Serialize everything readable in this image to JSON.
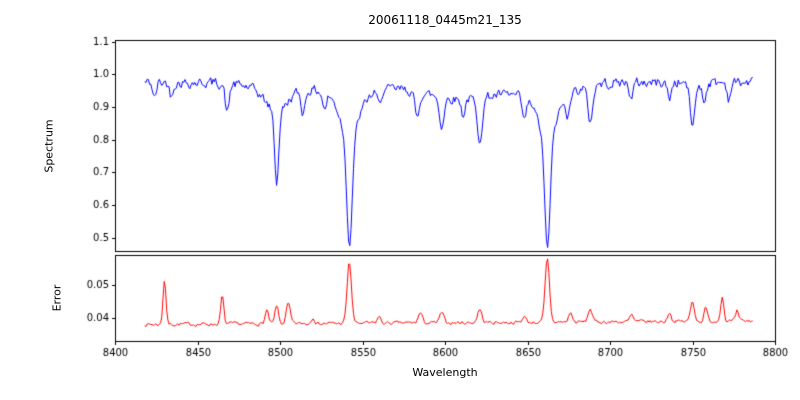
{
  "chart_data": {
    "type": "line",
    "title": "20061118_0445m21_135",
    "xlabel": "Wavelength",
    "xlim": [
      8400,
      8800
    ],
    "x_range": [
      8418,
      8787
    ],
    "x_ticks": [
      8400,
      8450,
      8500,
      8550,
      8600,
      8650,
      8700,
      8750,
      8800
    ],
    "x_tick_labels": [
      "8400",
      "8450",
      "8500",
      "8550",
      "8600",
      "8650",
      "8700",
      "8750",
      "8800"
    ],
    "grid": false,
    "legend": "none",
    "panels": [
      {
        "name": "spectrum",
        "ylabel": "Spectrum",
        "color": "#0000ff",
        "ylim": [
          0.46,
          1.105
        ],
        "y_ticks": [
          0.5,
          0.6,
          0.7,
          0.8,
          0.9,
          1.0,
          1.1
        ],
        "y_tick_labels": [
          "0.5",
          "0.6",
          "0.7",
          "0.8",
          "0.9",
          "1.0",
          "1.1"
        ],
        "model": {
          "continuum": 0.975,
          "noise_sigma": 0.014,
          "absorption_lines": [
            [
              8498.0,
              0.22,
              1.2
            ],
            [
              8498.0,
              0.06,
              6.0
            ],
            [
              8498.0,
              0.03,
              14.0
            ],
            [
              8542.1,
              0.33,
              1.6
            ],
            [
              8542.1,
              0.12,
              5.0
            ],
            [
              8542.1,
              0.05,
              14.0
            ],
            [
              8662.1,
              0.33,
              1.6
            ],
            [
              8662.1,
              0.12,
              5.0
            ],
            [
              8662.1,
              0.05,
              14.0
            ],
            [
              8413,
              0.05,
              1.0
            ],
            [
              8424,
              0.05,
              1.0
            ],
            [
              8434,
              0.04,
              1.0
            ],
            [
              8468,
              0.09,
              1.2
            ],
            [
              8514,
              0.07,
              1.2
            ],
            [
              8527,
              0.05,
              1.1
            ],
            [
              8560,
              0.04,
              1.0
            ],
            [
              8583,
              0.08,
              1.3
            ],
            [
              8598,
              0.09,
              1.4
            ],
            [
              8611,
              0.05,
              1.1
            ],
            [
              8621,
              0.13,
              1.6
            ],
            [
              8648,
              0.07,
              1.2
            ],
            [
              8610,
              0.05,
              25.0
            ],
            [
              8674,
              0.06,
              1.1
            ],
            [
              8688,
              0.11,
              1.5
            ],
            [
              8713,
              0.05,
              1.1
            ],
            [
              8736,
              0.05,
              1.1
            ],
            [
              8750,
              0.13,
              1.5
            ],
            [
              8757,
              0.06,
              1.1
            ],
            [
              8772,
              0.05,
              1.0
            ]
          ]
        }
      },
      {
        "name": "error",
        "ylabel": "Error",
        "color": "#ff0000",
        "ylim": [
          0.033,
          0.059
        ],
        "y_ticks": [
          0.04,
          0.05
        ],
        "y_tick_labels": [
          "0.04",
          "0.05"
        ],
        "model": {
          "baseline": 0.038,
          "slope_per_angstrom": 2.8e-06,
          "noise_sigma": 0.00045,
          "spikes": [
            [
              8430,
              0.0135,
              0.9
            ],
            [
              8465,
              0.0085,
              0.9
            ],
            [
              8492,
              0.004,
              1.0
            ],
            [
              8498,
              0.0055,
              1.0
            ],
            [
              8505,
              0.006,
              1.2
            ],
            [
              8520,
              0.002,
              1.0
            ],
            [
              8542,
              0.0185,
              1.3
            ],
            [
              8560,
              0.002,
              1.0
            ],
            [
              8585,
              0.003,
              1.2
            ],
            [
              8598,
              0.003,
              1.2
            ],
            [
              8621,
              0.004,
              1.3
            ],
            [
              8648,
              0.002,
              1.0
            ],
            [
              8662,
              0.019,
              1.3
            ],
            [
              8676,
              0.003,
              1.0
            ],
            [
              8688,
              0.004,
              1.2
            ],
            [
              8713,
              0.002,
              1.0
            ],
            [
              8736,
              0.003,
              1.0
            ],
            [
              8750,
              0.006,
              1.2
            ],
            [
              8758,
              0.004,
              1.0
            ],
            [
              8768,
              0.0075,
              1.0
            ],
            [
              8777,
              0.003,
              0.8
            ]
          ]
        }
      }
    ]
  }
}
